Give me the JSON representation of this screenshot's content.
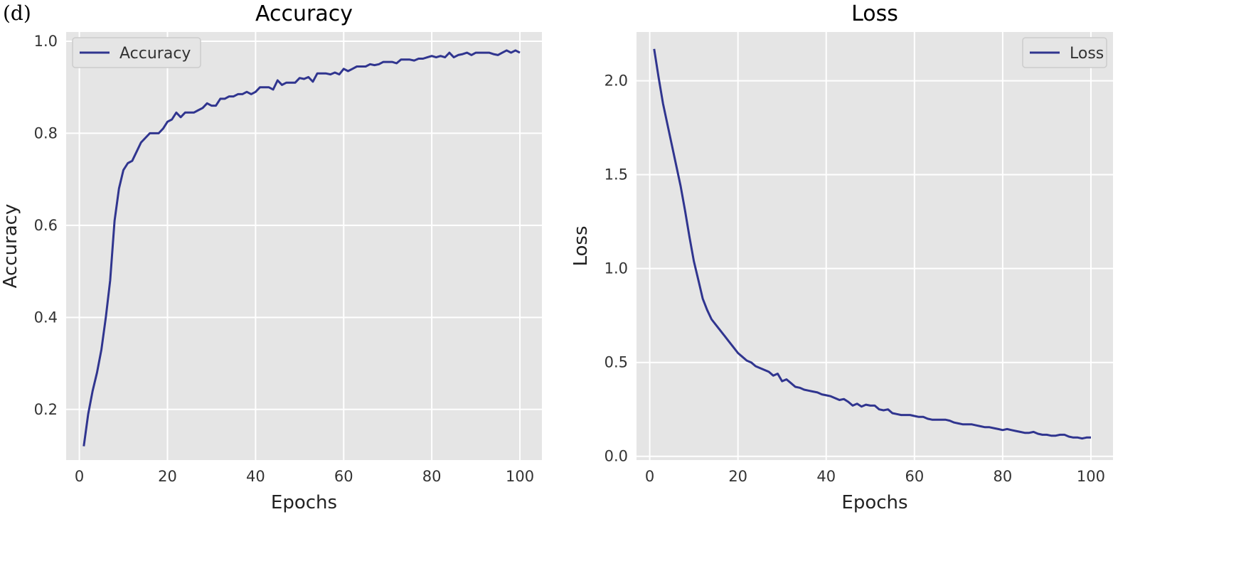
{
  "panel_label": "(d)",
  "colors": {
    "line": "#30358f",
    "plot_bg": "#e5e5e5",
    "grid": "#ffffff"
  },
  "chart_data": [
    {
      "type": "line",
      "title": "Accuracy",
      "xlabel": "Epochs",
      "ylabel": "Accuracy",
      "xlim": [
        -3,
        105
      ],
      "ylim": [
        0.09,
        1.02
      ],
      "xticks": [
        0,
        20,
        40,
        60,
        80,
        100
      ],
      "xtick_labels": [
        "0",
        "20",
        "40",
        "60",
        "80",
        "100"
      ],
      "yticks": [
        0.2,
        0.4,
        0.6,
        0.8,
        1.0
      ],
      "ytick_labels": [
        "0.2",
        "0.4",
        "0.6",
        "0.8",
        "1.0"
      ],
      "grid": true,
      "legend_position": "top-left",
      "series": [
        {
          "name": "Accuracy",
          "x": [
            1,
            2,
            3,
            4,
            5,
            6,
            7,
            8,
            9,
            10,
            11,
            12,
            13,
            14,
            15,
            16,
            17,
            18,
            19,
            20,
            21,
            22,
            23,
            24,
            25,
            26,
            27,
            28,
            29,
            30,
            31,
            32,
            33,
            34,
            35,
            36,
            37,
            38,
            39,
            40,
            41,
            42,
            43,
            44,
            45,
            46,
            47,
            48,
            49,
            50,
            51,
            52,
            53,
            54,
            55,
            56,
            57,
            58,
            59,
            60,
            61,
            62,
            63,
            64,
            65,
            66,
            67,
            68,
            69,
            70,
            71,
            72,
            73,
            74,
            75,
            76,
            77,
            78,
            79,
            80,
            81,
            82,
            83,
            84,
            85,
            86,
            87,
            88,
            89,
            90,
            91,
            92,
            93,
            94,
            95,
            96,
            97,
            98,
            99,
            100
          ],
          "y": [
            0.12,
            0.19,
            0.24,
            0.28,
            0.33,
            0.4,
            0.48,
            0.61,
            0.68,
            0.72,
            0.735,
            0.74,
            0.76,
            0.78,
            0.79,
            0.8,
            0.8,
            0.8,
            0.81,
            0.825,
            0.83,
            0.845,
            0.835,
            0.845,
            0.845,
            0.845,
            0.85,
            0.855,
            0.865,
            0.86,
            0.86,
            0.875,
            0.875,
            0.88,
            0.88,
            0.885,
            0.885,
            0.89,
            0.885,
            0.89,
            0.9,
            0.9,
            0.9,
            0.895,
            0.915,
            0.905,
            0.91,
            0.91,
            0.91,
            0.92,
            0.918,
            0.922,
            0.912,
            0.93,
            0.93,
            0.93,
            0.928,
            0.932,
            0.928,
            0.94,
            0.935,
            0.94,
            0.945,
            0.945,
            0.945,
            0.95,
            0.948,
            0.95,
            0.955,
            0.955,
            0.955,
            0.952,
            0.96,
            0.96,
            0.96,
            0.958,
            0.962,
            0.962,
            0.965,
            0.968,
            0.965,
            0.968,
            0.965,
            0.975,
            0.965,
            0.97,
            0.972,
            0.975,
            0.97,
            0.975,
            0.975,
            0.975,
            0.975,
            0.972,
            0.97,
            0.975,
            0.98,
            0.975,
            0.98,
            0.975
          ]
        }
      ]
    },
    {
      "type": "line",
      "title": "Loss",
      "xlabel": "Epochs",
      "ylabel": "Loss",
      "xlim": [
        -3,
        105
      ],
      "ylim": [
        -0.02,
        2.26
      ],
      "xticks": [
        0,
        20,
        40,
        60,
        80,
        100
      ],
      "xtick_labels": [
        "0",
        "20",
        "40",
        "60",
        "80",
        "100"
      ],
      "yticks": [
        0.0,
        0.5,
        1.0,
        1.5,
        2.0
      ],
      "ytick_labels": [
        "0.0",
        "0.5",
        "1.0",
        "1.5",
        "2.0"
      ],
      "grid": true,
      "legend_position": "top-right",
      "series": [
        {
          "name": "Loss",
          "x": [
            1,
            2,
            3,
            4,
            5,
            6,
            7,
            8,
            9,
            10,
            11,
            12,
            13,
            14,
            15,
            16,
            17,
            18,
            19,
            20,
            21,
            22,
            23,
            24,
            25,
            26,
            27,
            28,
            29,
            30,
            31,
            32,
            33,
            34,
            35,
            36,
            37,
            38,
            39,
            40,
            41,
            42,
            43,
            44,
            45,
            46,
            47,
            48,
            49,
            50,
            51,
            52,
            53,
            54,
            55,
            56,
            57,
            58,
            59,
            60,
            61,
            62,
            63,
            64,
            65,
            66,
            67,
            68,
            69,
            70,
            71,
            72,
            73,
            74,
            75,
            76,
            77,
            78,
            79,
            80,
            81,
            82,
            83,
            84,
            85,
            86,
            87,
            88,
            89,
            90,
            91,
            92,
            93,
            94,
            95,
            96,
            97,
            98,
            99,
            100
          ],
          "y": [
            2.17,
            2.02,
            1.88,
            1.77,
            1.66,
            1.55,
            1.44,
            1.31,
            1.17,
            1.04,
            0.94,
            0.84,
            0.78,
            0.73,
            0.7,
            0.67,
            0.64,
            0.61,
            0.58,
            0.55,
            0.53,
            0.51,
            0.5,
            0.48,
            0.47,
            0.46,
            0.45,
            0.43,
            0.44,
            0.4,
            0.41,
            0.39,
            0.37,
            0.365,
            0.355,
            0.35,
            0.345,
            0.34,
            0.33,
            0.325,
            0.32,
            0.31,
            0.3,
            0.305,
            0.29,
            0.27,
            0.28,
            0.265,
            0.275,
            0.27,
            0.27,
            0.25,
            0.245,
            0.25,
            0.23,
            0.225,
            0.22,
            0.22,
            0.22,
            0.215,
            0.21,
            0.21,
            0.2,
            0.195,
            0.195,
            0.195,
            0.195,
            0.19,
            0.18,
            0.175,
            0.17,
            0.17,
            0.17,
            0.165,
            0.16,
            0.155,
            0.155,
            0.15,
            0.145,
            0.14,
            0.145,
            0.14,
            0.135,
            0.13,
            0.125,
            0.125,
            0.13,
            0.12,
            0.115,
            0.115,
            0.11,
            0.11,
            0.115,
            0.115,
            0.105,
            0.1,
            0.1,
            0.095,
            0.1,
            0.1
          ]
        }
      ]
    }
  ]
}
